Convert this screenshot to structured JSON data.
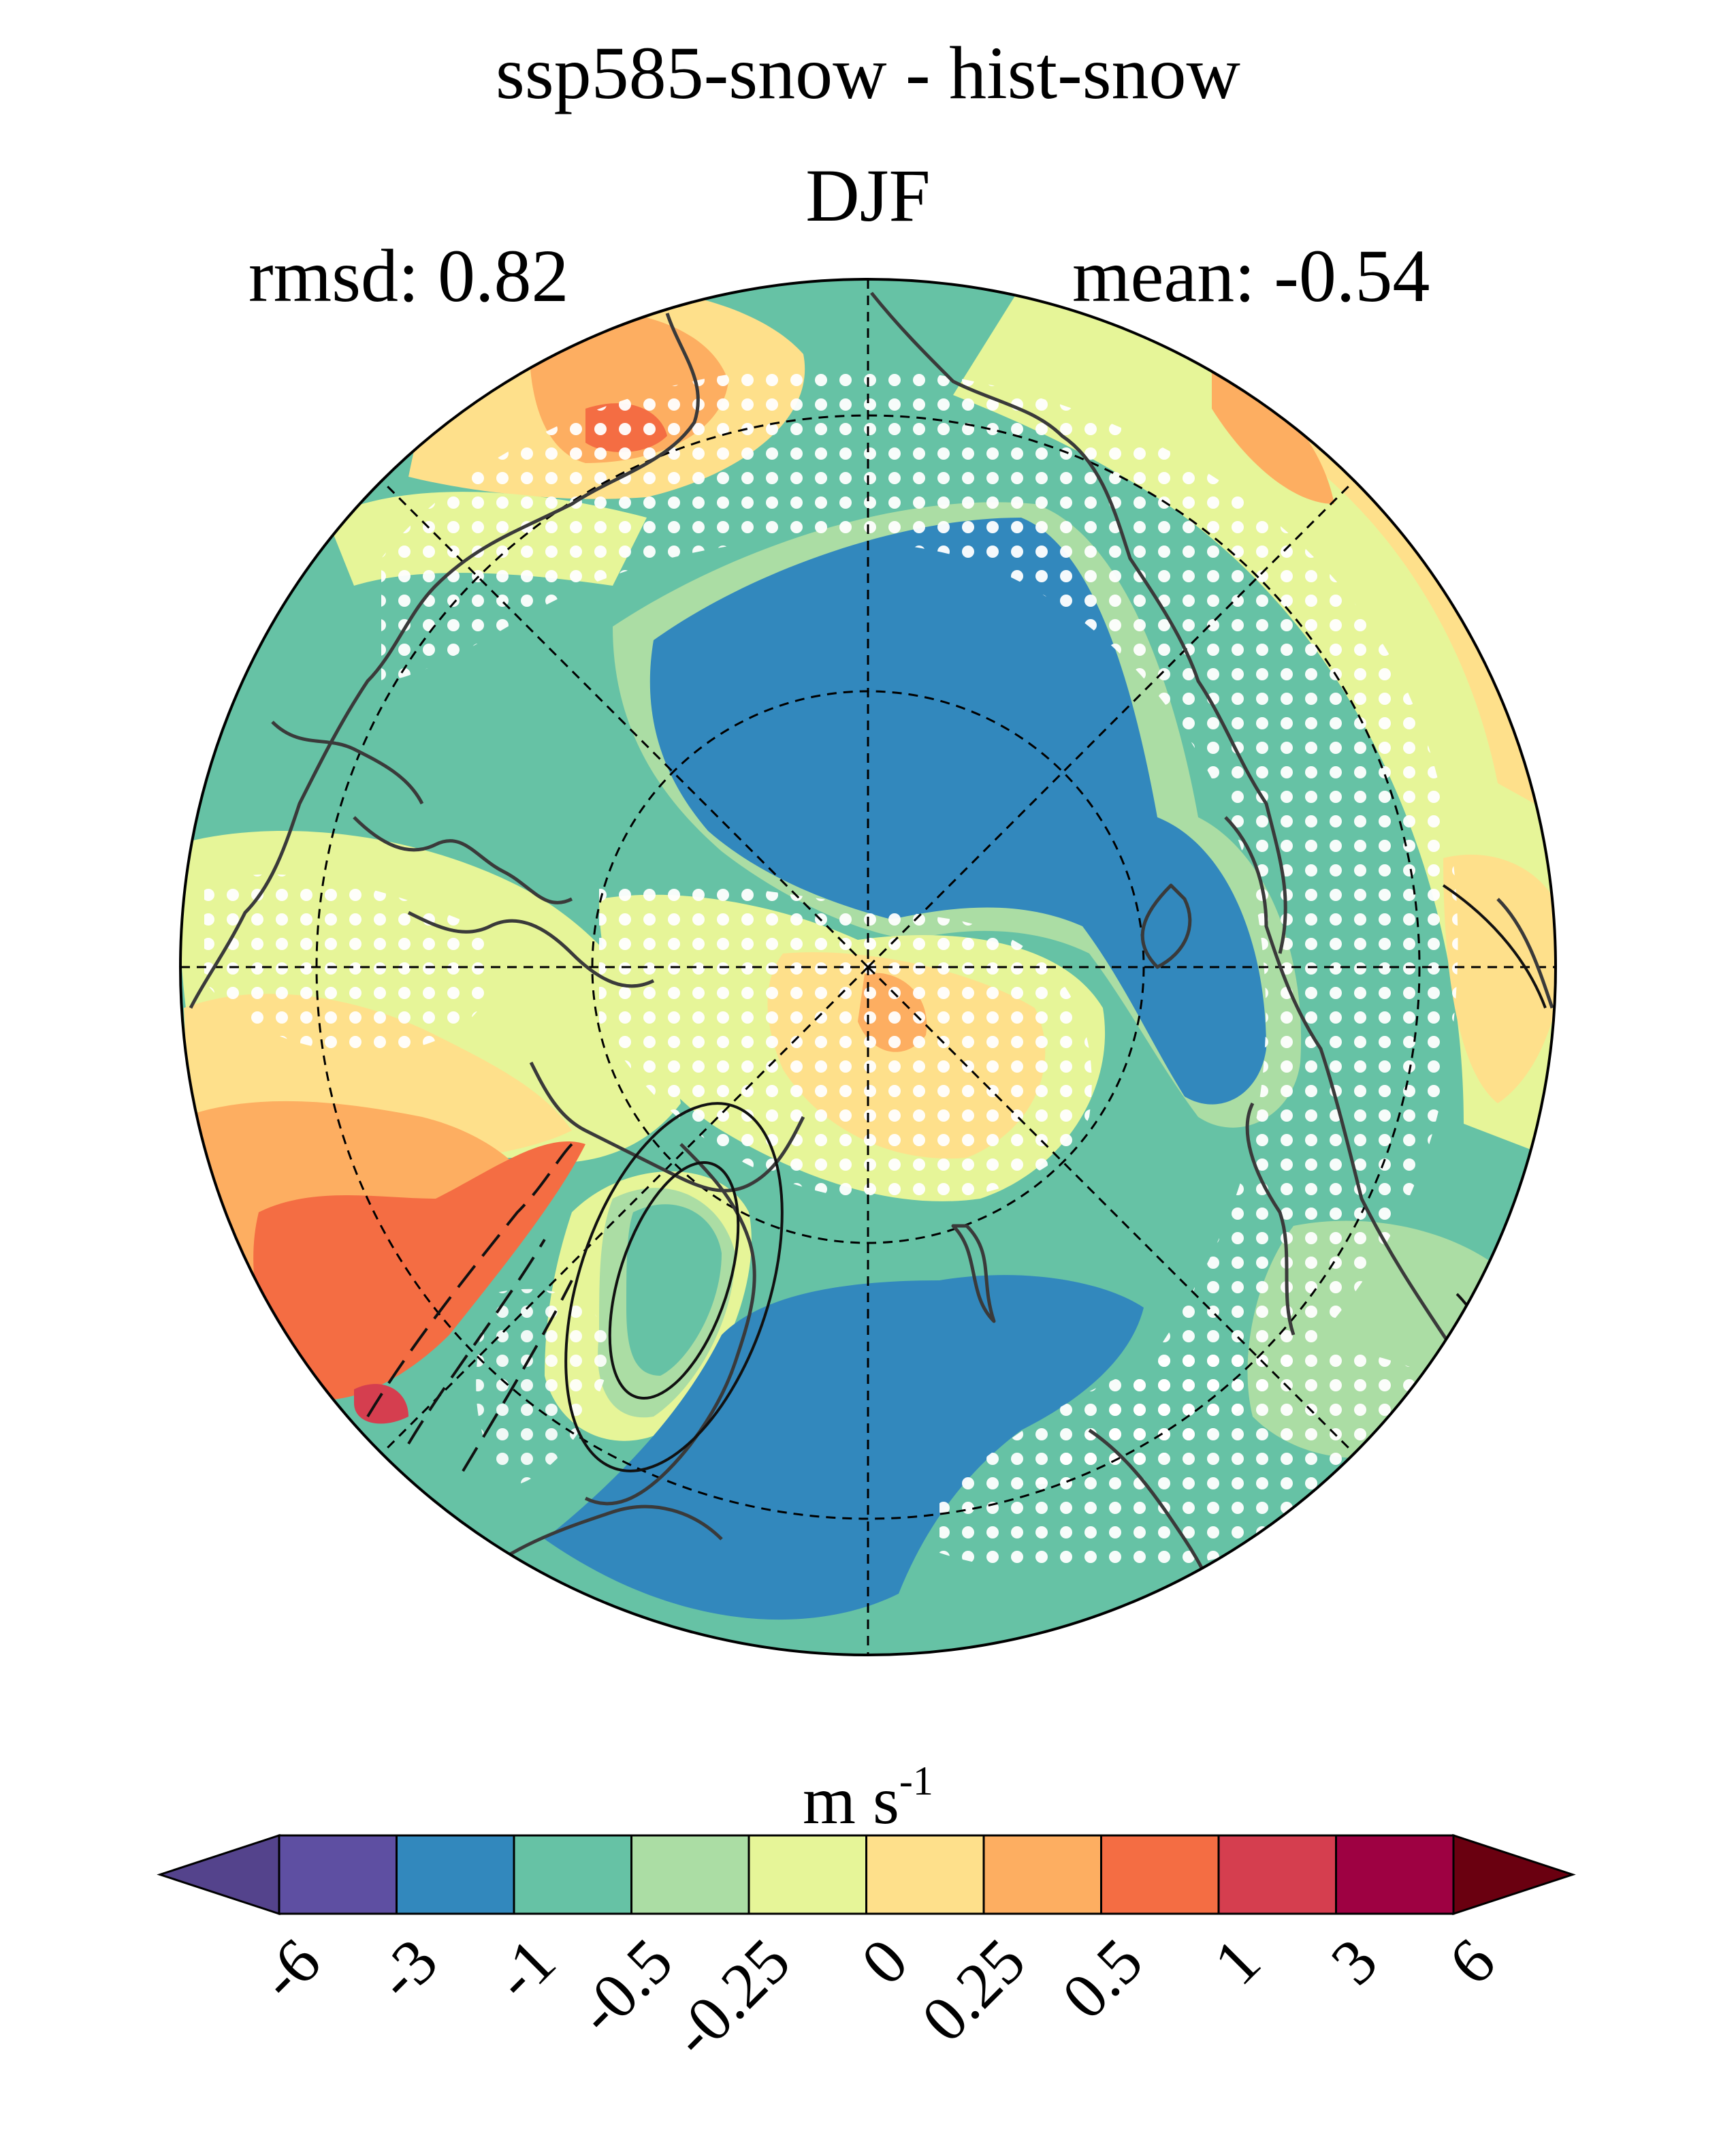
{
  "title": "ssp585-snow - hist-snow",
  "season": "DJF",
  "stats": {
    "rmsd_label": "rmsd: 0.82",
    "mean_label": "mean: -0.54"
  },
  "colorbar": {
    "units": "m s",
    "units_exponent": "-1",
    "tick_labels": [
      "-6",
      "-3",
      "-1",
      "-0.5",
      "-0.25",
      "0",
      "0.25",
      "0.5",
      "1",
      "3",
      "6"
    ],
    "colors": [
      "#5e4fa2",
      "#3288bd",
      "#66c2a5",
      "#abdda4",
      "#e6f598",
      "#fee08b",
      "#fdae61",
      "#f46d43",
      "#d53e4f",
      "#9e0142"
    ],
    "under_color": "#54438c",
    "over_color": "#6a0010"
  },
  "map": {
    "projection": "north-polar-stereographic",
    "stippling": "white dots mark significant regions",
    "contours": "solid = positive, dashed = negative"
  }
}
